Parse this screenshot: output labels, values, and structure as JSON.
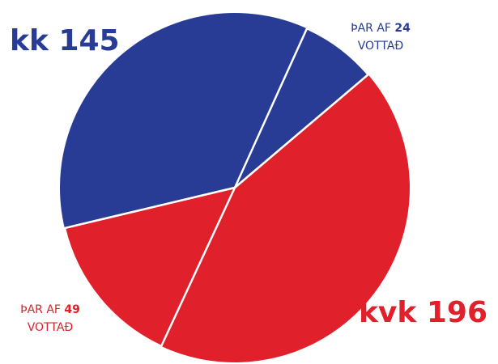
{
  "chart_data": {
    "type": "pie",
    "groups": [
      {
        "name": "kk",
        "value": 145,
        "certified": 24,
        "color": "#283c96"
      },
      {
        "name": "kvk",
        "value": 196,
        "certified": 49,
        "color": "#e0202a"
      }
    ],
    "sub_label_prefix": "ÞAR AF",
    "sub_label_suffix": "VOTTAÐ"
  }
}
